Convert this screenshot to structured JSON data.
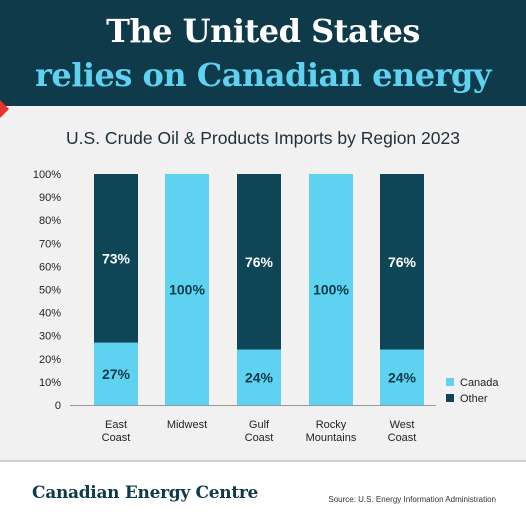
{
  "header": {
    "line1": "The United States",
    "line2": "relies on Canadian energy"
  },
  "colors": {
    "header_bg": "#0e3a4a",
    "headline_accent": "#5ed2f0",
    "canada": "#5ed2f0",
    "other": "#0e4657",
    "accent_red": "#e8322b"
  },
  "chart_data": {
    "type": "bar",
    "stacked": true,
    "title": "U.S. Crude Oil & Products Imports by Region 2023",
    "categories": [
      [
        "East",
        "Coast"
      ],
      [
        "Midwest"
      ],
      [
        "Gulf",
        "Coast"
      ],
      [
        "Rocky",
        "Mountains"
      ],
      [
        "West",
        "Coast"
      ]
    ],
    "series": [
      {
        "name": "Canada",
        "values": [
          27,
          100,
          24,
          100,
          24
        ],
        "labels": [
          "27%",
          "100%",
          "24%",
          "100%",
          "24%"
        ]
      },
      {
        "name": "Other",
        "values": [
          73,
          0,
          76,
          0,
          76
        ],
        "labels": [
          "73%",
          "",
          "76%",
          "",
          "76%"
        ]
      }
    ],
    "yticks": [
      "0",
      "10%",
      "20%",
      "30%",
      "40%",
      "50%",
      "60%",
      "70%",
      "80%",
      "90%",
      "100%"
    ],
    "ylim": [
      0,
      100
    ],
    "grid": false,
    "legend_position": "bottom-right"
  },
  "footer": {
    "brand": "Canadian Energy Centre",
    "source": "Source: U.S. Energy Information Administration"
  }
}
